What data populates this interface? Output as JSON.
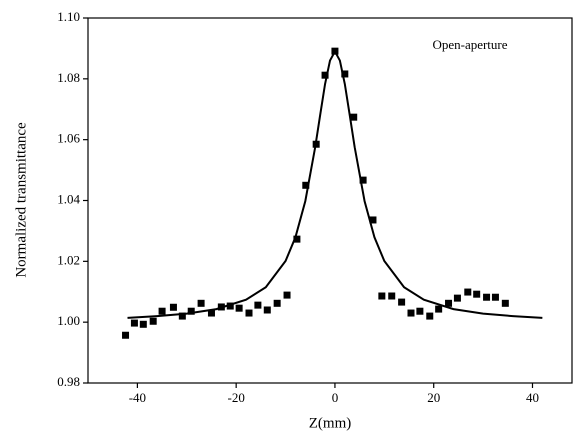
{
  "chart_data": {
    "type": "scatter",
    "annotation": "Open-aperture",
    "xlabel": "Z(mm)",
    "ylabel": "Normalized transmittance",
    "xlim": [
      -50,
      48
    ],
    "ylim": [
      0.98,
      1.1
    ],
    "xticks": [
      -40,
      -20,
      0,
      20,
      40
    ],
    "yticks": [
      {
        "value": 0.98,
        "label": "0.98"
      },
      {
        "value": 1.0,
        "label": "1.00"
      },
      {
        "value": 1.02,
        "label": "1.02"
      },
      {
        "value": 1.04,
        "label": "1.04"
      },
      {
        "value": 1.06,
        "label": "1.06"
      },
      {
        "value": 1.08,
        "label": "1.08"
      },
      {
        "value": 1.1,
        "label": "1.10"
      }
    ],
    "points": {
      "color": "#000000",
      "x": [
        -42.4,
        -40.6,
        -38.8,
        -36.8,
        -35,
        -32.7,
        -30.9,
        -29.1,
        -27.1,
        -25,
        -23,
        -21.2,
        -19.4,
        -17.4,
        -15.6,
        -13.7,
        -11.7,
        -9.7,
        -7.7,
        -5.9,
        -3.8,
        -2,
        0,
        2,
        3.8,
        5.7,
        7.7,
        9.5,
        11.5,
        13.5,
        15.4,
        17.2,
        19.2,
        21,
        23,
        24.8,
        26.9,
        28.7,
        30.7,
        32.5,
        34.5
      ],
      "y": [
        0.9957,
        0.9997,
        0.9993,
        1.0003,
        1.0036,
        1.0049,
        1.002,
        1.0036,
        1.0062,
        1.003,
        1.005,
        1.0053,
        1.0046,
        1.003,
        1.0056,
        1.004,
        1.0062,
        1.0089,
        1.0273,
        1.045,
        1.0585,
        1.0812,
        1.0891,
        1.0816,
        1.0674,
        1.0467,
        1.0336,
        1.0086,
        1.0086,
        1.0066,
        1.003,
        1.0036,
        1.002,
        1.0043,
        1.0062,
        1.0079,
        1.0099,
        1.0092,
        1.0082,
        1.0082,
        1.0062
      ]
    },
    "fit": {
      "color": "#000000",
      "x": [
        -42,
        -36,
        -30,
        -24,
        -18,
        -14,
        -10,
        -8,
        -6,
        -4,
        -3,
        -2,
        -1,
        0,
        1,
        2,
        3,
        4,
        6,
        8,
        10,
        14,
        18,
        24,
        30,
        36,
        42
      ],
      "y": [
        1.0014,
        1.002,
        1.0028,
        1.0043,
        1.0074,
        1.0115,
        1.0201,
        1.0279,
        1.0398,
        1.0575,
        1.068,
        1.0783,
        1.086,
        1.089,
        1.086,
        1.0783,
        1.068,
        1.0575,
        1.0398,
        1.0279,
        1.0201,
        1.0115,
        1.0074,
        1.0043,
        1.0028,
        1.002,
        1.0014
      ]
    }
  }
}
